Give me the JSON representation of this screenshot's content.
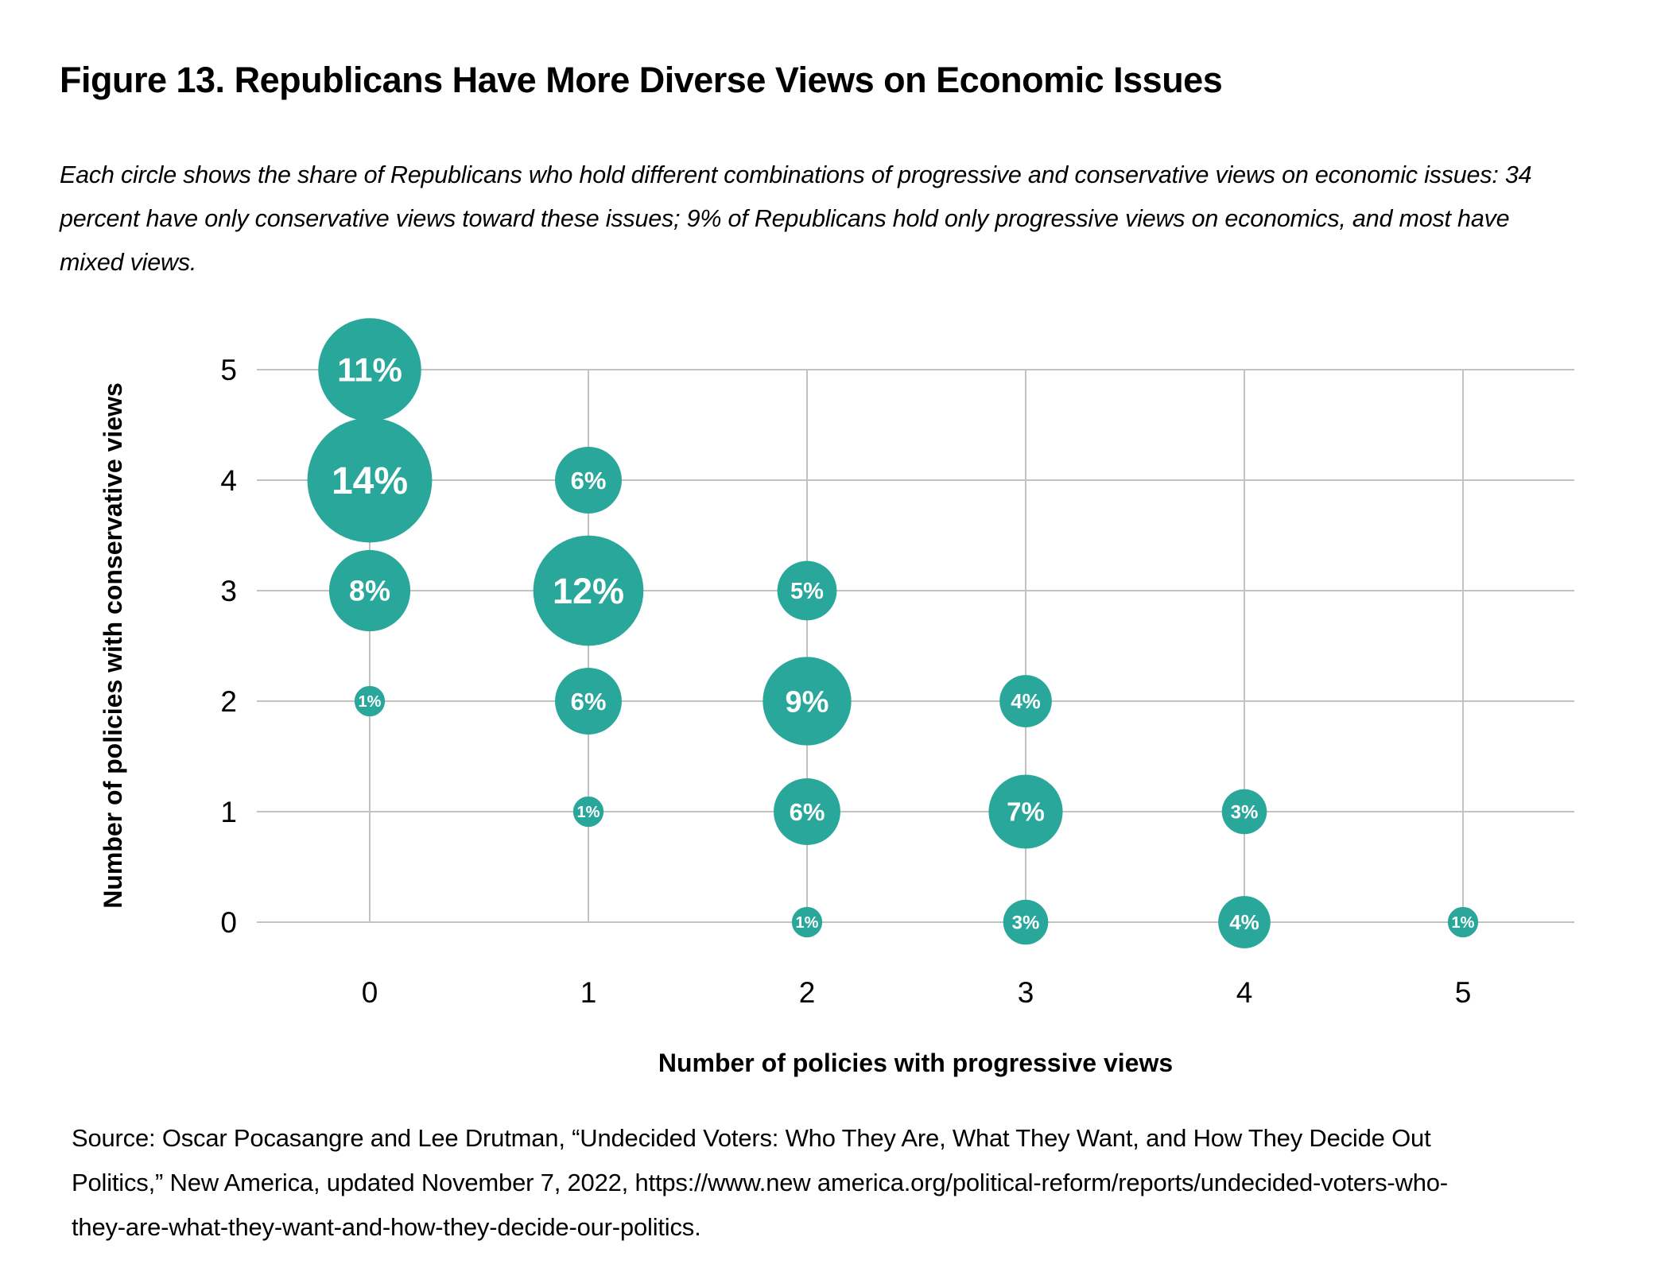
{
  "figure": {
    "title": "Figure 13. Republicans Have More Diverse Views on Economic Issues",
    "subtitle": "Each circle shows the share of Republicans who hold different combinations of progressive and conservative views on economic issues: 34 percent have only conservative views toward these issues; 9% of Republicans hold only progressive views on economics, and most have mixed views.",
    "source": "Source: Oscar Pocasangre and Lee Drutman, “Undecided Voters: Who They Are, What They Want, and How They Decide Out Politics,” New America, updated November 7, 2022, https://www.new america.org/political-reform/reports/undecided-voters-who-they-are-what-they-want-and-how-they-decide-our-politics."
  },
  "chart_data": {
    "type": "scatter",
    "subtype": "bubble",
    "title": "Figure 13. Republicans Have More Diverse Views on Economic Issues",
    "xlabel": "Number of policies with progressive views",
    "ylabel": "Number of policies with conservative views",
    "x_ticks": [
      0,
      1,
      2,
      3,
      4,
      5
    ],
    "y_ticks": [
      0,
      1,
      2,
      3,
      4,
      5
    ],
    "x_range": [
      -0.5,
      5.5
    ],
    "y_range": [
      -0.5,
      5.5
    ],
    "grid": true,
    "legend_position": "none",
    "bubble_color": "#2aa79b",
    "bubble_label_color": "#ffffff",
    "grid_color": "#c2c2c2",
    "axis_text_color": "#000000",
    "points": [
      {
        "x": 0,
        "y": 5,
        "value": 11,
        "label": "11%"
      },
      {
        "x": 0,
        "y": 4,
        "value": 14,
        "label": "14%"
      },
      {
        "x": 0,
        "y": 3,
        "value": 8,
        "label": "8%"
      },
      {
        "x": 0,
        "y": 2,
        "value": 1,
        "label": "1%"
      },
      {
        "x": 1,
        "y": 4,
        "value": 6,
        "label": "6%"
      },
      {
        "x": 1,
        "y": 3,
        "value": 12,
        "label": "12%"
      },
      {
        "x": 1,
        "y": 2,
        "value": 6,
        "label": "6%"
      },
      {
        "x": 1,
        "y": 1,
        "value": 1,
        "label": "1%"
      },
      {
        "x": 2,
        "y": 3,
        "value": 5,
        "label": "5%"
      },
      {
        "x": 2,
        "y": 2,
        "value": 9,
        "label": "9%"
      },
      {
        "x": 2,
        "y": 1,
        "value": 6,
        "label": "6%"
      },
      {
        "x": 2,
        "y": 0,
        "value": 1,
        "label": "1%"
      },
      {
        "x": 3,
        "y": 2,
        "value": 4,
        "label": "4%"
      },
      {
        "x": 3,
        "y": 1,
        "value": 7,
        "label": "7%"
      },
      {
        "x": 3,
        "y": 0,
        "value": 3,
        "label": "3%"
      },
      {
        "x": 4,
        "y": 1,
        "value": 3,
        "label": "3%"
      },
      {
        "x": 4,
        "y": 0,
        "value": 4,
        "label": "4%"
      },
      {
        "x": 5,
        "y": 0,
        "value": 1,
        "label": "1%"
      }
    ]
  }
}
